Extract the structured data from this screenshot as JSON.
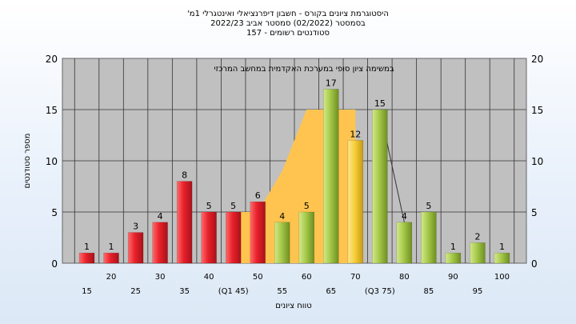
{
  "titles": {
    "line1": "היסטוגרמת ציונים בקורס - חשבון דיפרנציאלי ואינטגרלי 1מ'",
    "line2": "בסמסטר (02/2022) סמסטר אביב 2022/23",
    "line3": "סטודנטים רשומים - 157"
  },
  "chart_data": {
    "type": "bar",
    "legend": "במשימה ציון סופי במערכת האקדמית במחשב המרכזי",
    "xlabel": "טווח ציונים",
    "ylabel": "מספר סטודנטים",
    "ylim": [
      0,
      20
    ],
    "yticks": [
      "0",
      "5",
      "10",
      "15",
      "20"
    ],
    "grid": true,
    "categories": [
      "15",
      "20",
      "25",
      "30",
      "35",
      "40",
      "45",
      "50",
      "55",
      "60",
      "65",
      "70",
      "75",
      "80",
      "85",
      "90",
      "95",
      "100"
    ],
    "x_tick_labels": [
      "15",
      "20",
      "25",
      "30",
      "35",
      "40",
      "(Q1 45)",
      "50",
      "55",
      "60",
      "65",
      "70",
      "(Q3 75)",
      "80",
      "85",
      "90",
      "95",
      "100"
    ],
    "values": [
      1,
      1,
      3,
      4,
      8,
      5,
      5,
      6,
      4,
      5,
      17,
      12,
      15,
      4,
      5,
      1,
      2,
      1
    ],
    "value_labels": [
      "1",
      "1",
      "3",
      "4",
      "8",
      "5",
      "5",
      "6",
      "4",
      "5",
      "17",
      "12",
      "15",
      "4",
      "5",
      "1",
      "2",
      "1"
    ],
    "bar_colors": [
      "red",
      "red",
      "red",
      "red",
      "red",
      "red",
      "red",
      "red",
      "green",
      "green",
      "green",
      "yellow",
      "green",
      "green",
      "green",
      "green",
      "green",
      "green"
    ],
    "area_values": [
      5,
      5,
      9,
      15,
      15
    ],
    "area_start_category": "45",
    "colors": {
      "red": "#e8202a",
      "green": "#a6c94a",
      "yellow": "#f7cf3c",
      "area": "#ffc44f",
      "plot_bg": "#c0c0c0",
      "grid": "#333333"
    }
  }
}
